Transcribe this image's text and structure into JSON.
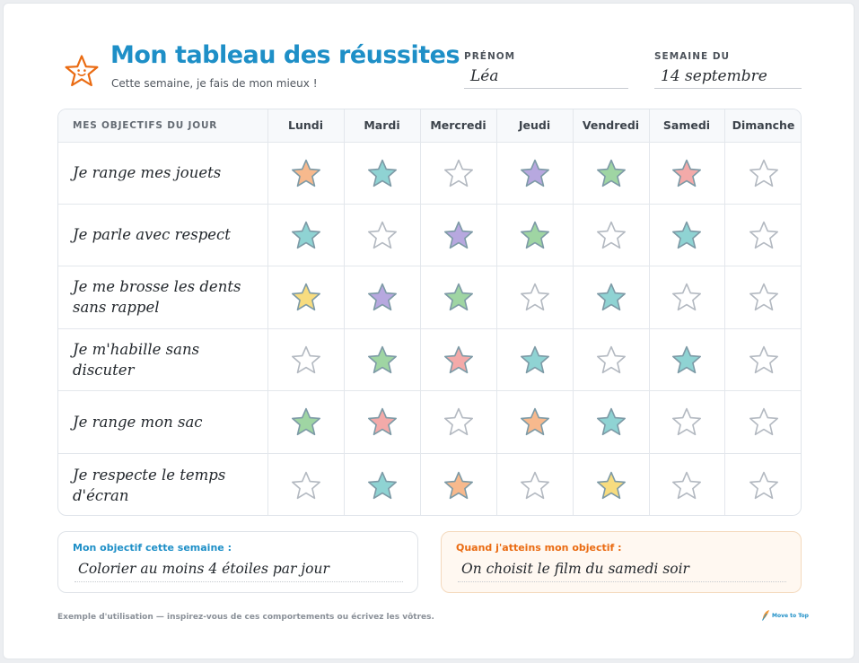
{
  "header": {
    "title": "Mon tableau des réussites",
    "subtitle": "Cette semaine, je fais de mon mieux !",
    "title_color": "#1e8fc7",
    "star_icon": "smiling-star-icon",
    "star_color": "#ea6b12"
  },
  "name_field": {
    "label": "PRÉNOM",
    "value": "Léa"
  },
  "week_field": {
    "label": "SEMAINE DU",
    "value": "14 septembre"
  },
  "table": {
    "objectives_header": "MES OBJECTIFS DU JOUR",
    "days": [
      "Lundi",
      "Mardi",
      "Mercredi",
      "Jeudi",
      "Vendredi",
      "Samedi",
      "Dimanche"
    ],
    "rows": [
      {
        "label": "Je range mes jouets",
        "stars": [
          "orange",
          "teal",
          "empty",
          "purple",
          "green",
          "pink",
          "empty"
        ]
      },
      {
        "label": "Je parle avec respect",
        "stars": [
          "teal",
          "empty",
          "purple",
          "green",
          "empty",
          "teal",
          "empty"
        ]
      },
      {
        "label": "Je me brosse les dents sans rappel",
        "stars": [
          "yellow",
          "purple",
          "green",
          "empty",
          "teal",
          "empty",
          "empty"
        ]
      },
      {
        "label": "Je m'habille sans discuter",
        "stars": [
          "empty",
          "green",
          "pink",
          "teal",
          "empty",
          "teal",
          "empty"
        ]
      },
      {
        "label": "Je range mon sac",
        "stars": [
          "green",
          "pink",
          "empty",
          "orange",
          "teal",
          "empty",
          "empty"
        ]
      },
      {
        "label": "Je respecte le temps d'écran",
        "stars": [
          "empty",
          "teal",
          "orange",
          "empty",
          "yellow",
          "empty",
          "empty"
        ]
      }
    ],
    "star_colors": {
      "orange": "#f7b98d",
      "teal": "#8fd3d3",
      "purple": "#b7a8df",
      "green": "#9fd5a3",
      "pink": "#f3aaa9",
      "yellow": "#f7dc7f",
      "empty": "#ffffff"
    }
  },
  "goal_box": {
    "title": "Mon objectif cette semaine :",
    "value": "Colorier au moins 4 étoiles par jour"
  },
  "reward_box": {
    "title": "Quand j'atteins mon objectif :",
    "value": "On choisit le film du samedi soir"
  },
  "footer": {
    "note": "Exemple d'utilisation — inspirez-vous de ces comportements ou écrivez les vôtres.",
    "logo_text": "Move to Top",
    "logo_icon": "feather-logo-icon"
  }
}
